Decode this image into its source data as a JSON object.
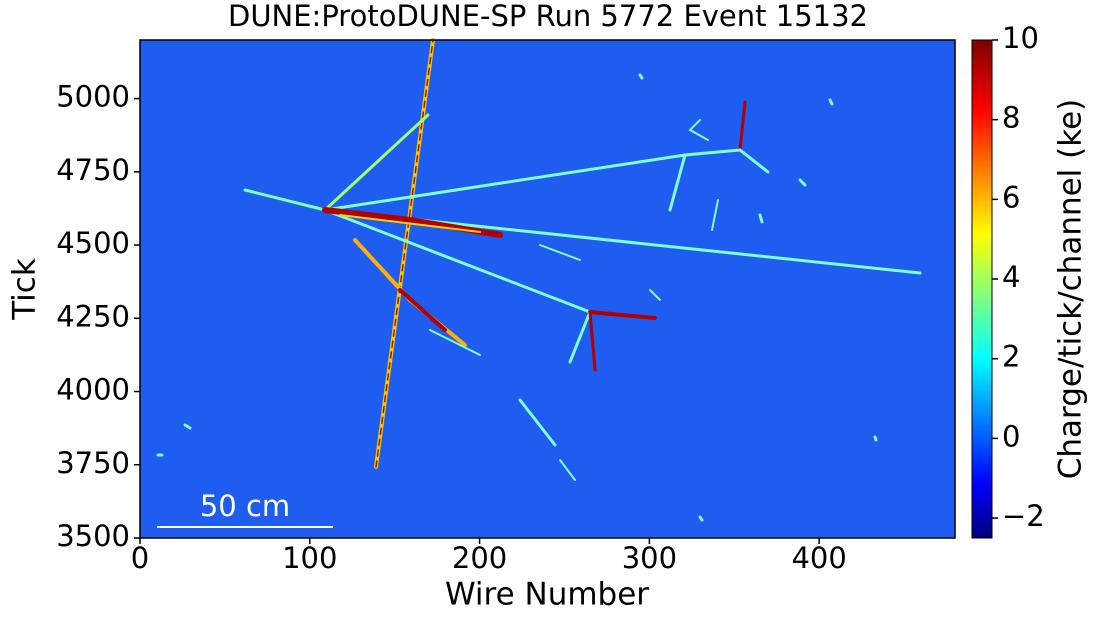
{
  "chart_data": {
    "type": "heatmap",
    "title": "DUNE:ProtoDUNE-SP Run 5772 Event 15132",
    "xlabel": "Wire Number",
    "ylabel": "Tick",
    "colorbar_label": "Charge/tick/channel (ke)",
    "xlim": [
      0,
      480
    ],
    "xticks": [
      0,
      100,
      200,
      300,
      400
    ],
    "ylim": [
      3500,
      5200
    ],
    "yticks": [
      3500,
      3750,
      4000,
      4250,
      4500,
      4750,
      5000
    ],
    "clim": [
      -2.5,
      10
    ],
    "cticks": [
      {
        "value": -2,
        "label": "−2"
      },
      0,
      2,
      4,
      6,
      8,
      10
    ],
    "colormap": "jet",
    "annotation": "50 cm"
  }
}
